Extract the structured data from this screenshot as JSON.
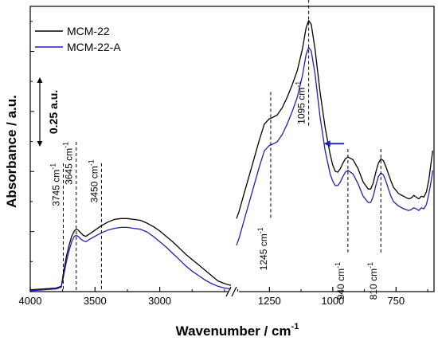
{
  "chart_data": {
    "type": "line",
    "xlabel": "Wavenumber / cm",
    "xlabel_sup": "-1",
    "ylabel": "Absorbance / a.u.",
    "x_reversed": true,
    "axis_break": true,
    "x_segments": [
      {
        "range": [
          4000,
          2450
        ],
        "ticks": [
          "4000",
          "3500",
          "3000"
        ],
        "tick_values": [
          4000,
          3500,
          3000
        ]
      },
      {
        "range": [
          1380,
          600
        ],
        "ticks": [
          "1250",
          "1000",
          "750"
        ],
        "tick_values": [
          1250,
          1000,
          750
        ]
      }
    ],
    "ylim": [
      0,
      1.6
    ],
    "grid": false,
    "legend_position": "top-left",
    "scale_bar": {
      "label": "0.25 a.u.",
      "value": 0.25
    },
    "series": [
      {
        "name": "MCM-22",
        "color": "#000000",
        "segments": [
          {
            "x": [
              4000,
              3900,
              3800,
              3760,
              3745,
              3720,
              3700,
              3680,
              3660,
              3645,
              3630,
              3610,
              3590,
              3570,
              3550,
              3500,
              3450,
              3400,
              3350,
              3300,
              3250,
              3200,
              3150,
              3100,
              3050,
              3000,
              2950,
              2900,
              2850,
              2800,
              2750,
              2700,
              2650,
              2600,
              2550,
              2500,
              2450
            ],
            "y": [
              0.01,
              0.015,
              0.02,
              0.03,
              0.1,
              0.2,
              0.26,
              0.31,
              0.34,
              0.35,
              0.345,
              0.33,
              0.315,
              0.31,
              0.32,
              0.345,
              0.37,
              0.39,
              0.405,
              0.41,
              0.41,
              0.405,
              0.4,
              0.385,
              0.365,
              0.34,
              0.31,
              0.28,
              0.245,
              0.21,
              0.18,
              0.15,
              0.12,
              0.09,
              0.06,
              0.045,
              0.035
            ]
          },
          {
            "x": [
              1380,
              1370,
              1350,
              1320,
              1290,
              1270,
              1250,
              1240,
              1220,
              1200,
              1180,
              1160,
              1140,
              1120,
              1105,
              1095,
              1085,
              1070,
              1050,
              1030,
              1010,
              1000,
              990,
              980,
              970,
              960,
              950,
              940,
              920,
              900,
              880,
              860,
              850,
              840,
              830,
              820,
              810,
              800,
              790,
              780,
              770,
              760,
              740,
              720,
              700,
              690,
              680,
              670,
              660,
              650,
              640,
              630,
              620,
              610,
              605
            ],
            "y": [
              0.41,
              0.45,
              0.55,
              0.7,
              0.85,
              0.94,
              0.97,
              0.975,
              0.99,
              1.03,
              1.09,
              1.16,
              1.24,
              1.36,
              1.48,
              1.52,
              1.5,
              1.36,
              1.12,
              0.92,
              0.77,
              0.71,
              0.675,
              0.67,
              0.69,
              0.72,
              0.745,
              0.755,
              0.74,
              0.69,
              0.615,
              0.575,
              0.575,
              0.61,
              0.67,
              0.72,
              0.745,
              0.735,
              0.7,
              0.66,
              0.62,
              0.585,
              0.55,
              0.535,
              0.52,
              0.525,
              0.54,
              0.53,
              0.52,
              0.535,
              0.53,
              0.56,
              0.63,
              0.74,
              0.79
            ]
          }
        ]
      },
      {
        "name": "MCM-22-A",
        "color": "#1f1fb4",
        "segments": [
          {
            "x": [
              4000,
              3900,
              3800,
              3760,
              3745,
              3720,
              3700,
              3680,
              3660,
              3645,
              3630,
              3610,
              3590,
              3570,
              3550,
              3500,
              3450,
              3400,
              3350,
              3300,
              3250,
              3200,
              3150,
              3100,
              3050,
              3000,
              2950,
              2900,
              2850,
              2800,
              2750,
              2700,
              2650,
              2600,
              2550,
              2500,
              2450
            ],
            "y": [
              0.005,
              0.01,
              0.015,
              0.025,
              0.08,
              0.17,
              0.23,
              0.28,
              0.31,
              0.315,
              0.31,
              0.295,
              0.285,
              0.28,
              0.29,
              0.31,
              0.33,
              0.345,
              0.355,
              0.36,
              0.36,
              0.355,
              0.35,
              0.335,
              0.31,
              0.28,
              0.25,
              0.215,
              0.18,
              0.145,
              0.115,
              0.09,
              0.065,
              0.045,
              0.03,
              0.02,
              0.015
            ]
          },
          {
            "x": [
              1380,
              1370,
              1350,
              1320,
              1290,
              1270,
              1250,
              1240,
              1220,
              1200,
              1180,
              1160,
              1140,
              1120,
              1105,
              1095,
              1085,
              1070,
              1050,
              1030,
              1010,
              1000,
              990,
              980,
              970,
              960,
              950,
              940,
              920,
              900,
              880,
              860,
              850,
              840,
              830,
              820,
              810,
              800,
              790,
              780,
              770,
              760,
              740,
              720,
              700,
              690,
              680,
              670,
              660,
              650,
              640,
              630,
              620,
              610,
              605
            ],
            "y": [
              0.26,
              0.3,
              0.4,
              0.55,
              0.7,
              0.79,
              0.82,
              0.825,
              0.84,
              0.88,
              0.94,
              1.01,
              1.09,
              1.21,
              1.33,
              1.37,
              1.35,
              1.22,
              0.98,
              0.79,
              0.66,
              0.62,
              0.595,
              0.595,
              0.615,
              0.645,
              0.67,
              0.68,
              0.66,
              0.605,
              0.535,
              0.5,
              0.5,
              0.535,
              0.595,
              0.645,
              0.665,
              0.655,
              0.62,
              0.575,
              0.535,
              0.505,
              0.48,
              0.465,
              0.455,
              0.46,
              0.47,
              0.465,
              0.455,
              0.47,
              0.465,
              0.49,
              0.55,
              0.63,
              0.68
            ]
          }
        ]
      }
    ],
    "annotations": [
      {
        "x": 3745,
        "seg": 0,
        "text": "3745 cm",
        "sup": "-1",
        "y_top": 0.72,
        "y_bottom": 0.0,
        "label_y": 0.6
      },
      {
        "x": 3645,
        "seg": 0,
        "text": "3645 cm",
        "sup": "-1",
        "y_top": 0.84,
        "y_bottom": 0.0,
        "label_y": 0.72
      },
      {
        "x": 3450,
        "seg": 0,
        "text": "3450 cm",
        "sup": "-1",
        "y_top": 0.72,
        "y_bottom": 0.0,
        "label_y": 0.62
      },
      {
        "x": 1245,
        "seg": 1,
        "text": "1245 cm",
        "sup": "-1",
        "y_top": 1.12,
        "y_bottom": 0.4,
        "label_y": 0.24
      },
      {
        "x": 1095,
        "seg": 1,
        "text": "1095 cm",
        "sup": "-1",
        "y_top": 1.7,
        "y_bottom": 0.92,
        "label_y": 1.06
      },
      {
        "x": 940,
        "seg": 1,
        "text": "940 cm",
        "sup": "-1",
        "y_top": 0.8,
        "y_bottom": 0.22,
        "label_y": 0.06
      },
      {
        "x": 810,
        "seg": 1,
        "text": "810 cm",
        "sup": "-1",
        "y_top": 0.8,
        "y_bottom": 0.22,
        "label_y": 0.06
      }
    ],
    "arrow": {
      "from_x": 955,
      "to_x": 1035,
      "seg": 1,
      "y": 0.83,
      "color": "#1f1fb4"
    }
  }
}
